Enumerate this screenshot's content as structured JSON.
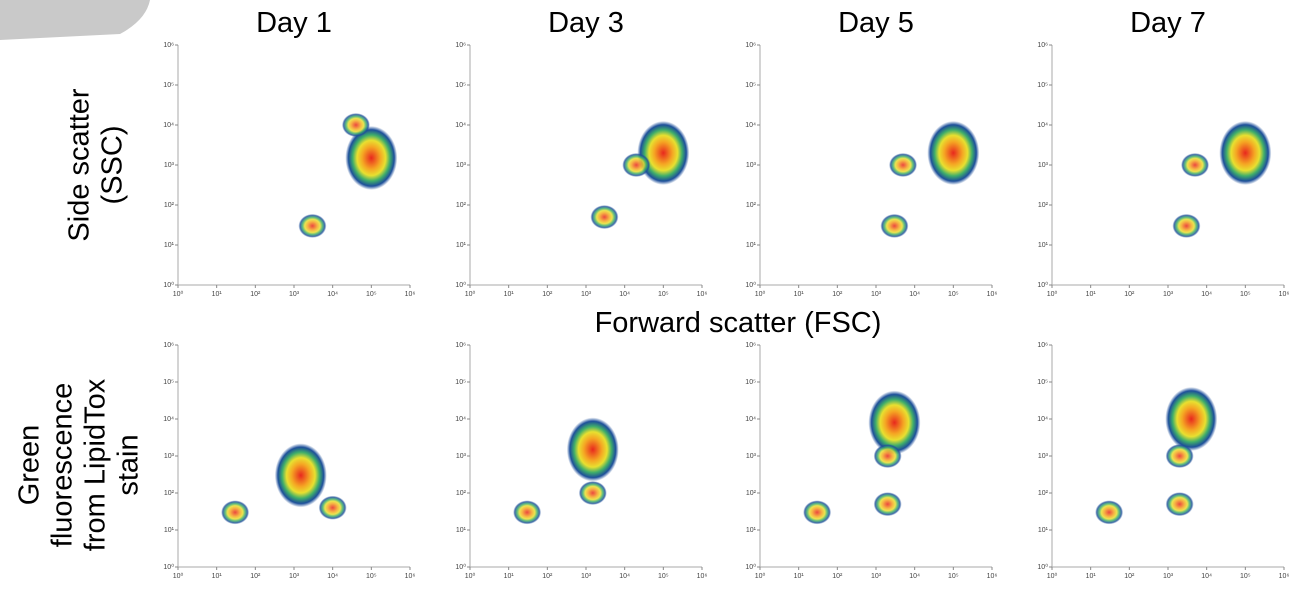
{
  "labels": {
    "x_label": "Forward scatter (FSC)",
    "row1_y_label": [
      "Side scatter",
      "(SSC)"
    ],
    "row2_y_label": [
      "Green",
      "fluorescence",
      "from LipidTox",
      "stain"
    ]
  },
  "chart_data": [
    {
      "type": "scatter",
      "title": "Day 1",
      "log_scale": true,
      "color": "#e8281e",
      "x": [
        100000,
        40000,
        3000
      ],
      "values": [
        1500,
        10000,
        30
      ],
      "xlim": [
        1,
        1000000
      ],
      "ylim": [
        1,
        1000000
      ],
      "xticks": [
        {
          "value": 1,
          "label": "10⁰"
        },
        {
          "value": 10,
          "label": "10¹"
        },
        {
          "value": 100,
          "label": "10²"
        },
        {
          "value": 1000,
          "label": "10³"
        },
        {
          "value": 10000,
          "label": "10⁴"
        },
        {
          "value": 100000,
          "label": "10⁵"
        },
        {
          "value": 1000000,
          "label": "10⁶"
        }
      ],
      "yticks": [
        {
          "value": 1,
          "label": "10⁰"
        },
        {
          "value": 10,
          "label": "10¹"
        },
        {
          "value": 100,
          "label": "10²"
        },
        {
          "value": 1000,
          "label": "10³"
        },
        {
          "value": 10000,
          "label": "10⁴"
        },
        {
          "value": 100000,
          "label": "10⁵"
        },
        {
          "value": 1000000,
          "label": "10⁶"
        }
      ]
    },
    {
      "type": "scatter",
      "title": "Day 3",
      "log_scale": true,
      "color": "#e8281e",
      "x": [
        100000,
        20000,
        3000
      ],
      "values": [
        2000,
        1000,
        50
      ],
      "xlim": [
        1,
        1000000
      ],
      "ylim": [
        1,
        1000000
      ],
      "xticks": [
        {
          "value": 1,
          "label": "10⁰"
        },
        {
          "value": 10,
          "label": "10¹"
        },
        {
          "value": 100,
          "label": "10²"
        },
        {
          "value": 1000,
          "label": "10³"
        },
        {
          "value": 10000,
          "label": "10⁴"
        },
        {
          "value": 100000,
          "label": "10⁵"
        },
        {
          "value": 1000000,
          "label": "10⁶"
        }
      ],
      "yticks": [
        {
          "value": 1,
          "label": "10⁰"
        },
        {
          "value": 10,
          "label": "10¹"
        },
        {
          "value": 100,
          "label": "10²"
        },
        {
          "value": 1000,
          "label": "10³"
        },
        {
          "value": 10000,
          "label": "10⁴"
        },
        {
          "value": 100000,
          "label": "10⁵"
        },
        {
          "value": 1000000,
          "label": "10⁶"
        }
      ]
    },
    {
      "type": "scatter",
      "title": "Day 5",
      "log_scale": true,
      "color": "#e8281e",
      "x": [
        100000,
        5000,
        3000
      ],
      "values": [
        2000,
        1000,
        30
      ],
      "xlim": [
        1,
        1000000
      ],
      "ylim": [
        1,
        1000000
      ],
      "xticks": [
        {
          "value": 1,
          "label": "10⁰"
        },
        {
          "value": 10,
          "label": "10¹"
        },
        {
          "value": 100,
          "label": "10²"
        },
        {
          "value": 1000,
          "label": "10³"
        },
        {
          "value": 10000,
          "label": "10⁴"
        },
        {
          "value": 100000,
          "label": "10⁵"
        },
        {
          "value": 1000000,
          "label": "10⁶"
        }
      ],
      "yticks": [
        {
          "value": 1,
          "label": "10⁰"
        },
        {
          "value": 10,
          "label": "10¹"
        },
        {
          "value": 100,
          "label": "10²"
        },
        {
          "value": 1000,
          "label": "10³"
        },
        {
          "value": 10000,
          "label": "10⁴"
        },
        {
          "value": 100000,
          "label": "10⁵"
        },
        {
          "value": 1000000,
          "label": "10⁶"
        }
      ]
    },
    {
      "type": "scatter",
      "title": "Day 7",
      "log_scale": true,
      "color": "#e8281e",
      "x": [
        100000,
        5000,
        3000
      ],
      "values": [
        2000,
        1000,
        30
      ],
      "xlim": [
        1,
        1000000
      ],
      "ylim": [
        1,
        1000000
      ],
      "xticks": [
        {
          "value": 1,
          "label": "10⁰"
        },
        {
          "value": 10,
          "label": "10¹"
        },
        {
          "value": 100,
          "label": "10²"
        },
        {
          "value": 1000,
          "label": "10³"
        },
        {
          "value": 10000,
          "label": "10⁴"
        },
        {
          "value": 100000,
          "label": "10⁵"
        },
        {
          "value": 1000000,
          "label": "10⁶"
        }
      ],
      "yticks": [
        {
          "value": 1,
          "label": "10⁰"
        },
        {
          "value": 10,
          "label": "10¹"
        },
        {
          "value": 100,
          "label": "10²"
        },
        {
          "value": 1000,
          "label": "10³"
        },
        {
          "value": 10000,
          "label": "10⁴"
        },
        {
          "value": 100000,
          "label": "10⁵"
        },
        {
          "value": 1000000,
          "label": "10⁶"
        }
      ]
    },
    {
      "type": "scatter",
      "log_scale": true,
      "color": "#e8281e",
      "x": [
        1500,
        10000,
        30
      ],
      "values": [
        300,
        40,
        30
      ],
      "xlim": [
        1,
        1000000
      ],
      "ylim": [
        1,
        1000000
      ],
      "xticks": [
        {
          "value": 1,
          "label": "10⁰"
        },
        {
          "value": 10,
          "label": "10¹"
        },
        {
          "value": 100,
          "label": "10²"
        },
        {
          "value": 1000,
          "label": "10³"
        },
        {
          "value": 10000,
          "label": "10⁴"
        },
        {
          "value": 100000,
          "label": "10⁵"
        },
        {
          "value": 1000000,
          "label": "10⁶"
        }
      ],
      "yticks": [
        {
          "value": 1,
          "label": "10⁰"
        },
        {
          "value": 10,
          "label": "10¹"
        },
        {
          "value": 100,
          "label": "10²"
        },
        {
          "value": 1000,
          "label": "10³"
        },
        {
          "value": 10000,
          "label": "10⁴"
        },
        {
          "value": 100000,
          "label": "10⁵"
        },
        {
          "value": 1000000,
          "label": "10⁶"
        }
      ]
    },
    {
      "type": "scatter",
      "log_scale": true,
      "color": "#e8281e",
      "x": [
        1500,
        1500,
        30
      ],
      "values": [
        1500,
        100,
        30
      ],
      "xlim": [
        1,
        1000000
      ],
      "ylim": [
        1,
        1000000
      ],
      "xticks": [
        {
          "value": 1,
          "label": "10⁰"
        },
        {
          "value": 10,
          "label": "10¹"
        },
        {
          "value": 100,
          "label": "10²"
        },
        {
          "value": 1000,
          "label": "10³"
        },
        {
          "value": 10000,
          "label": "10⁴"
        },
        {
          "value": 100000,
          "label": "10⁵"
        },
        {
          "value": 1000000,
          "label": "10⁶"
        }
      ],
      "yticks": [
        {
          "value": 1,
          "label": "10⁰"
        },
        {
          "value": 10,
          "label": "10¹"
        },
        {
          "value": 100,
          "label": "10²"
        },
        {
          "value": 1000,
          "label": "10³"
        },
        {
          "value": 10000,
          "label": "10⁴"
        },
        {
          "value": 100000,
          "label": "10⁵"
        },
        {
          "value": 1000000,
          "label": "10⁶"
        }
      ]
    },
    {
      "type": "scatter",
      "log_scale": true,
      "color": "#e8281e",
      "x": [
        3000,
        2000,
        2000,
        30
      ],
      "values": [
        8000,
        50,
        1000,
        30
      ],
      "xlim": [
        1,
        1000000
      ],
      "ylim": [
        1,
        1000000
      ],
      "xticks": [
        {
          "value": 1,
          "label": "10⁰"
        },
        {
          "value": 10,
          "label": "10¹"
        },
        {
          "value": 100,
          "label": "10²"
        },
        {
          "value": 1000,
          "label": "10³"
        },
        {
          "value": 10000,
          "label": "10⁴"
        },
        {
          "value": 100000,
          "label": "10⁵"
        },
        {
          "value": 1000000,
          "label": "10⁶"
        }
      ],
      "yticks": [
        {
          "value": 1,
          "label": "10⁰"
        },
        {
          "value": 10,
          "label": "10¹"
        },
        {
          "value": 100,
          "label": "10²"
        },
        {
          "value": 1000,
          "label": "10³"
        },
        {
          "value": 10000,
          "label": "10⁴"
        },
        {
          "value": 100000,
          "label": "10⁵"
        },
        {
          "value": 1000000,
          "label": "10⁶"
        }
      ]
    },
    {
      "type": "scatter",
      "log_scale": true,
      "color": "#e8281e",
      "x": [
        4000,
        2000,
        2000,
        30
      ],
      "values": [
        10000,
        50,
        1000,
        30
      ],
      "xlim": [
        1,
        1000000
      ],
      "ylim": [
        1,
        1000000
      ],
      "xticks": [
        {
          "value": 1,
          "label": "10⁰"
        },
        {
          "value": 10,
          "label": "10¹"
        },
        {
          "value": 100,
          "label": "10²"
        },
        {
          "value": 1000,
          "label": "10³"
        },
        {
          "value": 10000,
          "label": "10⁴"
        },
        {
          "value": 100000,
          "label": "10⁵"
        },
        {
          "value": 1000000,
          "label": "10⁶"
        }
      ],
      "yticks": [
        {
          "value": 1,
          "label": "10⁰"
        },
        {
          "value": 10,
          "label": "10¹"
        },
        {
          "value": 100,
          "label": "10²"
        },
        {
          "value": 1000,
          "label": "10³"
        },
        {
          "value": 10000,
          "label": "10⁴"
        },
        {
          "value": 100000,
          "label": "10⁵"
        },
        {
          "value": 1000000,
          "label": "10⁶"
        }
      ]
    }
  ]
}
